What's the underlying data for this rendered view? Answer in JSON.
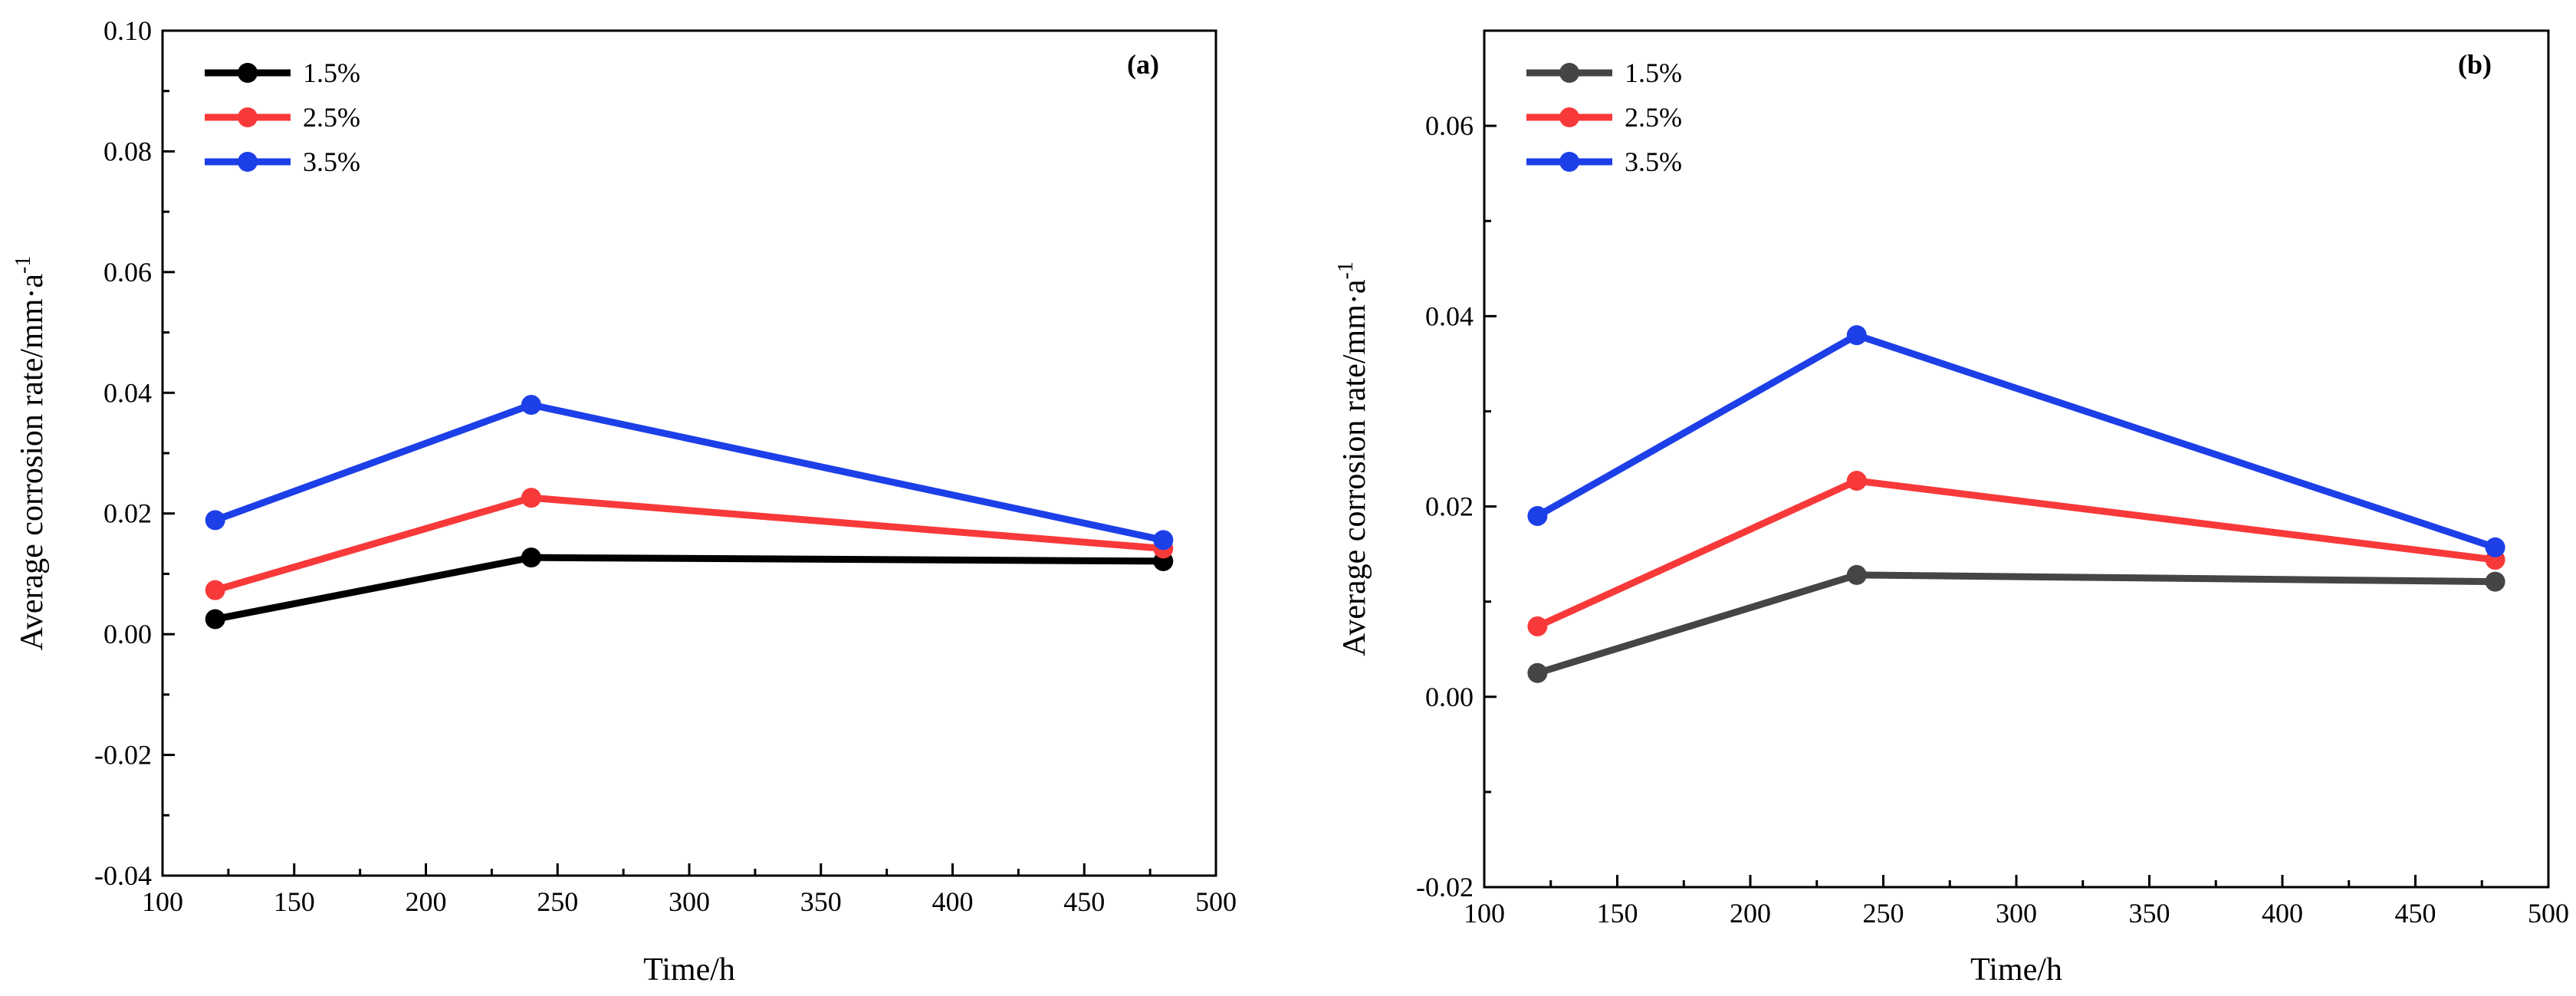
{
  "chart_data": [
    {
      "type": "line",
      "panel_label": "(a)",
      "xlabel": "Time/h",
      "ylabel": "Average corrosion rate/mm·a",
      "ylabel_superscript": "-1",
      "xlim": [
        100,
        500
      ],
      "ylim": [
        -0.04,
        0.1
      ],
      "x_ticks": [
        100,
        150,
        200,
        250,
        300,
        350,
        400,
        450,
        500
      ],
      "x_tick_labels": [
        "100",
        "150",
        "200",
        "250",
        "300",
        "350",
        "400",
        "450",
        "500"
      ],
      "y_ticks": [
        -0.04,
        -0.02,
        0.0,
        0.02,
        0.04,
        0.06,
        0.08,
        0.1
      ],
      "y_tick_labels": [
        "-0.04",
        "-0.02",
        "0.00",
        "0.02",
        "0.04",
        "0.06",
        "0.08",
        "0.10"
      ],
      "x": [
        120,
        240,
        480
      ],
      "legend_position": "top-left",
      "series": [
        {
          "name": "1.5%",
          "color": "#000000",
          "values": [
            0.0025,
            0.0127,
            0.0121
          ]
        },
        {
          "name": "2.5%",
          "color": "#f8393a",
          "values": [
            0.0073,
            0.0226,
            0.0142
          ]
        },
        {
          "name": "3.5%",
          "color": "#1c3fe8",
          "values": [
            0.0189,
            0.038,
            0.0156
          ]
        }
      ]
    },
    {
      "type": "line",
      "panel_label": "(b)",
      "xlabel": "Time/h",
      "ylabel": "Average corrosion rate/mm·a",
      "ylabel_superscript": "-1",
      "xlim": [
        100,
        500
      ],
      "ylim": [
        -0.02,
        0.07
      ],
      "x_ticks": [
        100,
        150,
        200,
        250,
        300,
        350,
        400,
        450,
        500
      ],
      "x_tick_labels": [
        "100",
        "150",
        "200",
        "250",
        "300",
        "350",
        "400",
        "450",
        "500"
      ],
      "y_ticks": [
        -0.02,
        0.0,
        0.02,
        0.04,
        0.06
      ],
      "y_tick_labels": [
        "-0.02",
        "0.00",
        "0.02",
        "0.04",
        "0.06"
      ],
      "x": [
        120,
        240,
        480
      ],
      "legend_position": "top-left",
      "series": [
        {
          "name": "1.5%",
          "color": "#454545",
          "values": [
            0.0025,
            0.0128,
            0.0121
          ]
        },
        {
          "name": "2.5%",
          "color": "#f8393a",
          "values": [
            0.0074,
            0.0227,
            0.0144
          ]
        },
        {
          "name": "3.5%",
          "color": "#1c3fe8",
          "values": [
            0.019,
            0.038,
            0.0157
          ]
        }
      ]
    }
  ]
}
